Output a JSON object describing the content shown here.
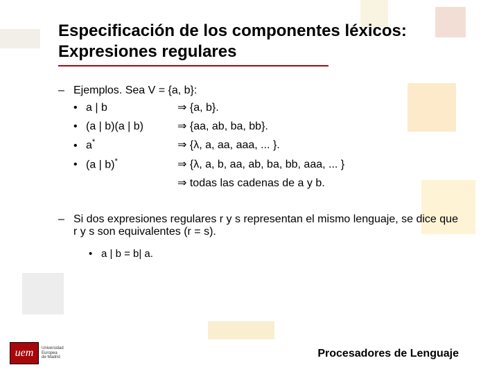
{
  "title_line1": "Especificación de los componentes léxicos:",
  "title_line2": "Expresiones regulares",
  "examples_intro": "Ejemplos. Sea V = {a, b}:",
  "expr1": "a | b",
  "expr2": "(a | b)(a | b)",
  "expr3_base": "a",
  "expr3_sup": "*",
  "expr4_base": "(a | b)",
  "expr4_sup": "*",
  "res1": "{a, b}.",
  "res2": "{aa, ab, ba, bb}.",
  "res3": "{λ, a, aa, aaa, ... }.",
  "res4": "{λ, a, b, aa, ab, ba, bb, aaa, ... }",
  "res5": "todas las cadenas de a y b.",
  "equiv_text": "Si dos expresiones regulares r y s representan el mismo lenguaje, se dice que r y s son equivalentes (r = s).",
  "equiv_example": "a | b = b| a.",
  "footer_title": "Procesadores de Lenguaje",
  "logo_mark": "uem",
  "logo_text1": "Universidad",
  "logo_text2": "Europea",
  "logo_text3": "de Madrid",
  "colors": {
    "brand_red": "#a8080b",
    "text": "#000000",
    "bg": "#ffffff"
  }
}
